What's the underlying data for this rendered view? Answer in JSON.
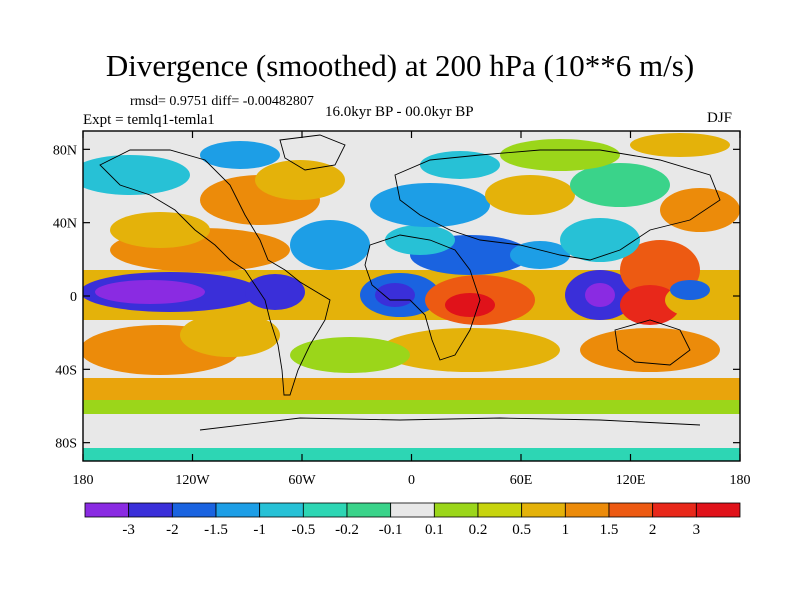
{
  "header": {
    "title": "Divergence (smoothed) at 200 hPa (10**6 m/s)",
    "stats": "rmsd= 0.9751 diff= -0.00482807",
    "experiment": "Expt = temlq1-temla1",
    "period": "16.0kyr BP - 00.0kyr BP",
    "season": "DJF"
  },
  "map": {
    "x_ticks": [
      "180",
      "120W",
      "60W",
      "0",
      "60E",
      "120E",
      "180"
    ],
    "y_ticks": [
      "80N",
      "40N",
      "0",
      "40S",
      "80S"
    ]
  },
  "colorbar": {
    "labels": [
      "-3",
      "-2",
      "-1.5",
      "-1",
      "-0.5",
      "-0.2",
      "-0.1",
      "0.1",
      "0.2",
      "0.5",
      "1",
      "1.5",
      "2",
      "3"
    ],
    "colors": [
      "#8a2be2",
      "#3a2fd9",
      "#1a63e0",
      "#1d9ee6",
      "#27c1d6",
      "#2dd6b4",
      "#3ad38a",
      "#e8e8e8",
      "#9bd61a",
      "#c7d40e",
      "#e4b20a",
      "#ec8b0a",
      "#ed5a12",
      "#e8281a",
      "#e0121a"
    ]
  },
  "colors": {
    "background": "#ffffff",
    "neutral": "#e8e8e8"
  }
}
